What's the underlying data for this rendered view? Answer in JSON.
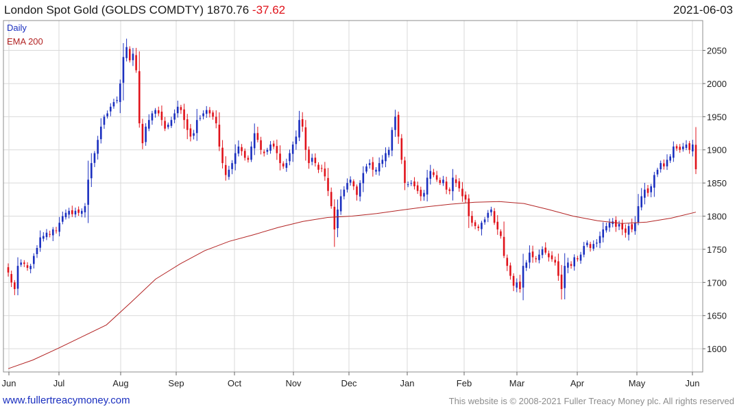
{
  "header": {
    "title": "London Spot Gold (GOLDS COMDTY) 1870.76",
    "change": "-37.62",
    "date": "2021-06-03"
  },
  "footer": {
    "url": "www.fullertreacymoney.com",
    "copyright": "This website is © 2008-2021 Fuller Treacy Money plc. All rights reserved"
  },
  "legend": [
    {
      "label": "Daily",
      "color": "#1a2fbf"
    },
    {
      "label": "EMA 200",
      "color": "#b22222"
    }
  ],
  "colors": {
    "up": "#1a2fbf",
    "down": "#e0121a",
    "ema": "#b22222",
    "grid": "#d9d9d9"
  },
  "chart_data": {
    "type": "candlestick",
    "x_axis": {
      "ticks": [
        "Jun",
        "Jul",
        "Aug",
        "Sep",
        "Oct",
        "Nov",
        "Dec",
        "Jan",
        "Feb",
        "Mar",
        "Apr",
        "May",
        "Jun"
      ]
    },
    "y_axis": {
      "position": "right",
      "ticks": [
        1600,
        1650,
        1700,
        1750,
        1800,
        1850,
        1900,
        1950,
        2000,
        2050
      ],
      "range": [
        1565,
        2095
      ]
    },
    "grid": true,
    "legend_position": "top-left",
    "series": [
      {
        "name": "Daily",
        "close": [
          1715,
          1700,
          1690,
          1725,
          1730,
          1728,
          1722,
          1725,
          1740,
          1752,
          1768,
          1770,
          1775,
          1772,
          1780,
          1778,
          1790,
          1800,
          1805,
          1808,
          1803,
          1808,
          1805,
          1808,
          1815,
          1855,
          1880,
          1895,
          1915,
          1935,
          1950,
          1955,
          1965,
          1972,
          1975,
          2000,
          2040,
          2055,
          2035,
          2045,
          2020,
          1940,
          1910,
          1935,
          1945,
          1955,
          1960,
          1955,
          1945,
          1932,
          1938,
          1945,
          1955,
          1965,
          1960,
          1945,
          1930,
          1920,
          1925,
          1945,
          1948,
          1955,
          1960,
          1955,
          1950,
          1940,
          1905,
          1880,
          1862,
          1870,
          1880,
          1895,
          1905,
          1898,
          1888,
          1885,
          1905,
          1925,
          1915,
          1900,
          1895,
          1900,
          1908,
          1905,
          1895,
          1880,
          1875,
          1880,
          1895,
          1908,
          1920,
          1945,
          1935,
          1900,
          1880,
          1888,
          1880,
          1870,
          1872,
          1860,
          1838,
          1815,
          1780,
          1810,
          1830,
          1840,
          1850,
          1855,
          1845,
          1832,
          1850,
          1865,
          1875,
          1880,
          1870,
          1870,
          1880,
          1885,
          1895,
          1900,
          1930,
          1950,
          1920,
          1885,
          1850,
          1848,
          1850,
          1845,
          1838,
          1830,
          1835,
          1858,
          1868,
          1862,
          1855,
          1850,
          1855,
          1840,
          1838,
          1858,
          1850,
          1842,
          1830,
          1825,
          1800,
          1790,
          1785,
          1782,
          1790,
          1795,
          1805,
          1810,
          1790,
          1780,
          1770,
          1740,
          1725,
          1710,
          1695,
          1700,
          1690,
          1725,
          1730,
          1745,
          1738,
          1735,
          1742,
          1750,
          1745,
          1738,
          1735,
          1730,
          1710,
          1690,
          1725,
          1730,
          1725,
          1738,
          1735,
          1742,
          1755,
          1760,
          1752,
          1758,
          1760,
          1770,
          1780,
          1785,
          1790,
          1792,
          1784,
          1788,
          1780,
          1775,
          1785,
          1780,
          1790,
          1815,
          1830,
          1840,
          1835,
          1845,
          1862,
          1870,
          1880,
          1875,
          1885,
          1890,
          1905,
          1902,
          1900,
          1905,
          1908,
          1900,
          1908,
          1870.76
        ]
      },
      {
        "name": "EMA 200",
        "values": [
          1570,
          1583,
          1600,
          1618,
          1636,
          1670,
          1705,
          1728,
          1748,
          1762,
          1772,
          1783,
          1792,
          1798,
          1800,
          1804,
          1809,
          1814,
          1818,
          1821,
          1822,
          1819,
          1810,
          1800,
          1793,
          1789,
          1791,
          1797,
          1806
        ]
      }
    ]
  }
}
